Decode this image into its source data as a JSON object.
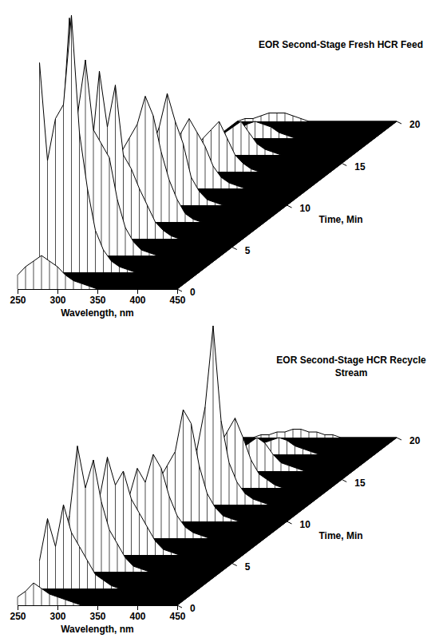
{
  "chart_data": [
    {
      "type": "surface",
      "title": "EOR Second-Stage Fresh HCR Feed",
      "x_label": "Wavelength, nm",
      "y_label": "Time, Min",
      "x": [
        250,
        260,
        270,
        280,
        290,
        300,
        310,
        320,
        330,
        340,
        350,
        360,
        370,
        380,
        390,
        400,
        410,
        420,
        430,
        440,
        450
      ],
      "y": [
        0,
        2,
        4,
        6,
        8,
        10,
        12,
        14,
        16,
        18,
        20
      ],
      "z": [
        [
          5,
          8,
          10,
          12,
          10,
          8,
          5,
          3,
          2,
          1,
          0,
          0,
          0,
          0,
          0,
          0,
          0,
          0,
          0,
          0,
          0
        ],
        [
          75,
          40,
          55,
          60,
          92,
          50,
          30,
          15,
          8,
          4,
          2,
          1,
          0,
          0,
          0,
          0,
          0,
          0,
          0,
          0,
          0
        ],
        [
          40,
          85,
          50,
          70,
          45,
          40,
          35,
          20,
          10,
          5,
          2,
          1,
          0,
          0,
          0,
          0,
          0,
          0,
          0,
          0,
          0
        ],
        [
          20,
          30,
          60,
          40,
          55,
          30,
          25,
          18,
          12,
          6,
          3,
          1,
          0,
          0,
          0,
          0,
          0,
          0,
          0,
          0,
          0
        ],
        [
          10,
          15,
          25,
          30,
          35,
          45,
          38,
          25,
          15,
          8,
          3,
          1,
          0,
          0,
          0,
          0,
          0,
          0,
          0,
          0,
          0
        ],
        [
          5,
          8,
          12,
          20,
          28,
          40,
          30,
          22,
          10,
          5,
          2,
          1,
          0,
          0,
          0,
          0,
          0,
          0,
          0,
          0,
          0
        ],
        [
          3,
          5,
          8,
          15,
          20,
          25,
          20,
          15,
          8,
          4,
          2,
          1,
          0,
          0,
          0,
          0,
          0,
          0,
          0,
          0,
          0
        ],
        [
          2,
          3,
          5,
          8,
          12,
          15,
          18,
          12,
          6,
          3,
          1,
          0,
          0,
          0,
          0,
          0,
          0,
          0,
          0,
          0,
          0
        ],
        [
          1,
          2,
          3,
          5,
          8,
          10,
          12,
          8,
          4,
          2,
          1,
          0,
          0,
          0,
          0,
          0,
          0,
          0,
          0,
          0,
          0
        ],
        [
          1,
          1,
          2,
          3,
          5,
          6,
          5,
          4,
          2,
          1,
          0,
          0,
          0,
          0,
          0,
          0,
          0,
          0,
          0,
          0,
          0
        ],
        [
          0,
          1,
          1,
          2,
          3,
          3,
          3,
          2,
          1,
          0,
          0,
          0,
          0,
          0,
          0,
          0,
          0,
          0,
          0,
          0,
          0
        ]
      ],
      "xlim": [
        250,
        450
      ],
      "xticks": [
        250,
        300,
        350,
        400,
        450
      ],
      "ylim": [
        0,
        20
      ],
      "yticks": [
        0,
        5,
        10,
        15,
        20
      ],
      "zlim": [
        0,
        100
      ]
    },
    {
      "type": "surface",
      "title": "EOR Second-Stage HCR Recycle Stream",
      "x_label": "Wavelength, nm",
      "y_label": "Time, Min",
      "x": [
        250,
        260,
        270,
        280,
        290,
        300,
        310,
        320,
        330,
        340,
        350,
        360,
        370,
        380,
        390,
        400,
        410,
        420,
        430,
        440,
        450
      ],
      "y": [
        0,
        2,
        4,
        6,
        8,
        10,
        12,
        14,
        16,
        18,
        20
      ],
      "z": [
        [
          3,
          5,
          8,
          6,
          4,
          3,
          2,
          1,
          0,
          0,
          0,
          0,
          0,
          0,
          0,
          0,
          0,
          0,
          0,
          0,
          0
        ],
        [
          10,
          25,
          15,
          30,
          20,
          15,
          10,
          5,
          3,
          1,
          0,
          0,
          0,
          0,
          0,
          0,
          0,
          0,
          0,
          0,
          0
        ],
        [
          8,
          20,
          45,
          30,
          40,
          25,
          15,
          10,
          5,
          2,
          1,
          0,
          0,
          0,
          0,
          0,
          0,
          0,
          0,
          0,
          0
        ],
        [
          5,
          10,
          20,
          35,
          25,
          30,
          20,
          15,
          10,
          5,
          2,
          1,
          0,
          0,
          0,
          0,
          0,
          0,
          0,
          0,
          0
        ],
        [
          3,
          6,
          10,
          15,
          25,
          20,
          30,
          25,
          15,
          8,
          4,
          2,
          1,
          0,
          0,
          0,
          0,
          0,
          0,
          0,
          0
        ],
        [
          2,
          4,
          6,
          10,
          15,
          20,
          25,
          40,
          35,
          20,
          10,
          5,
          2,
          1,
          0,
          0,
          0,
          0,
          0,
          0,
          0
        ],
        [
          1,
          2,
          4,
          6,
          10,
          15,
          20,
          35,
          64,
          30,
          15,
          8,
          4,
          2,
          1,
          0,
          0,
          0,
          0,
          0,
          0
        ],
        [
          1,
          1,
          2,
          4,
          6,
          10,
          15,
          20,
          25,
          18,
          10,
          5,
          3,
          1,
          0,
          0,
          0,
          0,
          0,
          0,
          0
        ],
        [
          0,
          1,
          1,
          2,
          4,
          6,
          8,
          10,
          12,
          10,
          6,
          3,
          2,
          1,
          0,
          0,
          0,
          0,
          0,
          0,
          0
        ],
        [
          0,
          0,
          1,
          1,
          2,
          3,
          4,
          5,
          6,
          5,
          3,
          2,
          1,
          0,
          0,
          0,
          0,
          0,
          0,
          0,
          0
        ],
        [
          0,
          0,
          0,
          1,
          1,
          2,
          2,
          3,
          3,
          2,
          2,
          1,
          1,
          0,
          0,
          0,
          0,
          0,
          0,
          0,
          0
        ]
      ],
      "xlim": [
        250,
        450
      ],
      "xticks": [
        250,
        300,
        350,
        400,
        450
      ],
      "ylim": [
        0,
        20
      ],
      "yticks": [
        0,
        5,
        10,
        15,
        20
      ],
      "zlim": [
        0,
        100
      ]
    }
  ]
}
